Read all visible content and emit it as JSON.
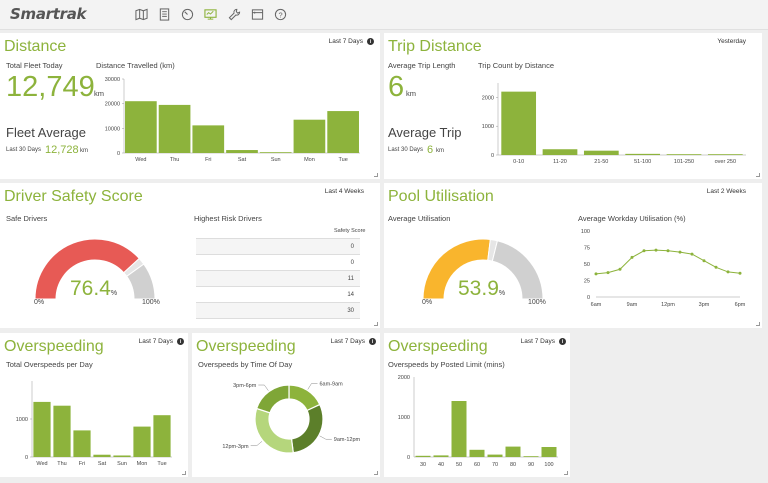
{
  "app": {
    "logo": "Smartrak",
    "accent": "#8db33c",
    "nav_icons": [
      "map-icon",
      "document-icon",
      "gauge-icon",
      "monitor-icon",
      "wrench-icon",
      "calendar-icon",
      "help-icon"
    ]
  },
  "distance": {
    "title": "Distance",
    "period": "Last 7 Days",
    "fleet_today_label": "Total Fleet Today",
    "fleet_today_value": "12,749",
    "fleet_today_unit": "km",
    "fleet_avg_label": "Fleet Average",
    "last30_label": "Last 30 Days",
    "last30_value": "12,728",
    "last30_unit": "km",
    "chart_title": "Distance Travelled (km)"
  },
  "trip": {
    "title": "Trip Distance",
    "period": "Yesterday",
    "avg_len_label": "Average Trip Length",
    "avg_len_value": "6",
    "avg_len_unit": "km",
    "avg_trip_label": "Average Trip",
    "last30_label": "Last 30 Days",
    "last30_value": "6",
    "last30_unit": "km",
    "chart_title": "Trip Count by Distance"
  },
  "safety": {
    "title": "Driver Safety Score",
    "period": "Last 4 Weeks",
    "safe_label": "Safe Drivers",
    "gauge_value": "76.4",
    "gauge_unit": "%",
    "gauge_min": "0%",
    "gauge_max": "100%",
    "gauge_fraction": 0.764,
    "risk_label": "Highest Risk Drivers",
    "risk_col": "Safety Score",
    "risk_rows": [
      "0",
      "0",
      "11",
      "14",
      "30"
    ]
  },
  "pool": {
    "title": "Pool Utilisation",
    "period": "Last 2 Weeks",
    "avg_label": "Average Utilisation",
    "gauge_value": "53.9",
    "gauge_unit": "%",
    "gauge_min": "0%",
    "gauge_max": "100%",
    "gauge_fraction": 0.539,
    "chart_title": "Average Workday Utilisation (%)"
  },
  "over1": {
    "title": "Overspeeding",
    "period": "Last 7 Days",
    "chart_title": "Total Overspeeds per Day"
  },
  "over2": {
    "title": "Overspeeding",
    "period": "Last 7 Days",
    "chart_title": "Overspeeds by Time Of Day"
  },
  "over3": {
    "title": "Overspeeding",
    "period": "Last 7 Days",
    "chart_title": "Overspeeds by Posted Limit (mins)"
  },
  "chart_data": [
    {
      "id": "distance",
      "type": "bar",
      "categories": [
        "Wed",
        "Thu",
        "Fri",
        "Sat",
        "Sun",
        "Mon",
        "Tue"
      ],
      "values": [
        21000,
        19500,
        11200,
        1200,
        300,
        13500,
        17000
      ],
      "yticks": [
        "30000",
        "20000",
        "10000",
        "0"
      ],
      "ylim": [
        0,
        30000
      ],
      "title": "Distance Travelled (km)"
    },
    {
      "id": "trip",
      "type": "bar",
      "categories": [
        "0-10",
        "11-20",
        "21-50",
        "51-100",
        "101-250",
        "over 250"
      ],
      "values": [
        2200,
        200,
        150,
        40,
        5,
        0
      ],
      "yticks": [
        "2000",
        "1000",
        "0"
      ],
      "ylim": [
        0,
        2500
      ],
      "title": "Trip Count by Distance"
    },
    {
      "id": "pool",
      "type": "line",
      "x": [
        "6am",
        "7am",
        "8am",
        "9am",
        "10am",
        "11am",
        "12pm",
        "1pm",
        "2pm",
        "3pm",
        "4pm",
        "5pm",
        "6pm"
      ],
      "values": [
        35,
        37,
        42,
        60,
        70,
        71,
        70,
        68,
        65,
        55,
        45,
        38,
        36
      ],
      "xticks": [
        "6am",
        "9am",
        "12pm",
        "3pm",
        "6pm"
      ],
      "yticks": [
        "100",
        "75",
        "50",
        "25",
        "0"
      ],
      "ylim": [
        0,
        100
      ],
      "title": "Average Workday Utilisation (%)"
    },
    {
      "id": "over1",
      "type": "bar",
      "categories": [
        "Wed",
        "Thu",
        "Fri",
        "Sat",
        "Sun",
        "Mon",
        "Tue"
      ],
      "values": [
        1450,
        1350,
        700,
        60,
        40,
        800,
        1100
      ],
      "yticks": [
        "1000",
        "0"
      ],
      "ylim": [
        0,
        2000
      ],
      "title": "Total Overspeeds per Day"
    },
    {
      "id": "over2",
      "type": "pie",
      "categories": [
        "6am-9am",
        "9am-12pm",
        "12pm-3pm",
        "3pm-6pm"
      ],
      "values": [
        18,
        30,
        32,
        20
      ],
      "title": "Overspeeds by Time Of Day"
    },
    {
      "id": "over3",
      "type": "bar",
      "categories": [
        "30",
        "40",
        "50",
        "60",
        "70",
        "80",
        "90",
        "100"
      ],
      "bars": [
        30,
        40,
        50,
        60,
        70,
        80,
        90,
        100
      ],
      "values": [
        30,
        40,
        1400,
        180,
        60,
        260,
        10,
        250
      ],
      "xticks": [
        "30",
        "40",
        "50",
        "60",
        "70",
        "80",
        "90",
        "100"
      ],
      "yticks": [
        "2000",
        "1000",
        "0"
      ],
      "ylim": [
        0,
        2000
      ],
      "title": "Overspeeds by Posted Limit (mins)"
    }
  ]
}
